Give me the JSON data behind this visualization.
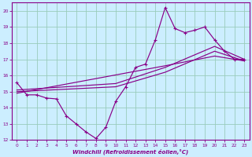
{
  "xlabel": "Windchill (Refroidissement éolien,°C)",
  "bg_color": "#cceeff",
  "grid_color": "#99ccbb",
  "line_color": "#880088",
  "xlim": [
    -0.5,
    23.5
  ],
  "ylim": [
    12,
    20.5
  ],
  "xticks": [
    0,
    1,
    2,
    3,
    4,
    5,
    6,
    7,
    8,
    9,
    10,
    11,
    12,
    13,
    14,
    15,
    16,
    17,
    18,
    19,
    20,
    21,
    22,
    23
  ],
  "yticks": [
    12,
    13,
    14,
    15,
    16,
    17,
    18,
    19,
    20
  ],
  "zigzag_x": [
    0,
    1,
    2,
    3,
    4,
    5,
    6,
    7,
    8,
    9,
    10,
    11,
    12,
    13,
    14,
    15,
    16,
    17,
    18,
    19,
    20,
    21,
    22,
    23
  ],
  "zigzag_y": [
    15.55,
    14.8,
    14.8,
    14.6,
    14.55,
    13.5,
    13.0,
    12.5,
    12.1,
    12.8,
    14.4,
    15.3,
    16.5,
    16.7,
    18.2,
    20.2,
    18.9,
    18.65,
    18.8,
    19.0,
    18.2,
    17.5,
    17.0,
    17.0
  ],
  "line1_x": [
    0,
    10,
    15,
    20,
    23
  ],
  "line1_y": [
    15.1,
    15.5,
    16.5,
    17.8,
    17.0
  ],
  "line2_x": [
    0,
    10,
    15,
    20,
    23
  ],
  "line2_y": [
    15.0,
    15.3,
    16.2,
    17.5,
    16.9
  ],
  "line3_x": [
    0,
    15,
    20,
    23
  ],
  "line3_y": [
    14.9,
    16.6,
    17.2,
    16.9
  ]
}
